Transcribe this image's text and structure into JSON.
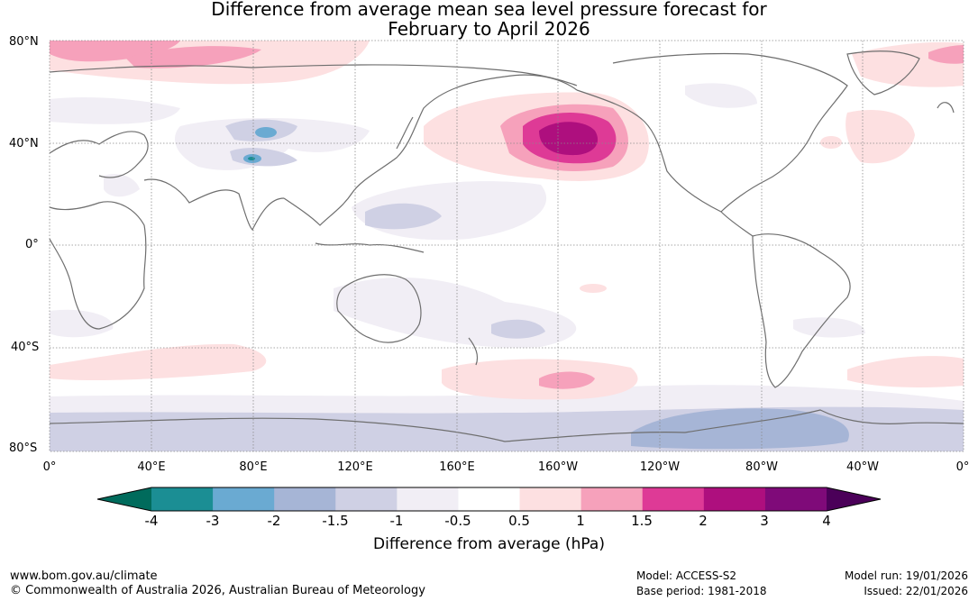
{
  "title": {
    "line1": "Difference from average mean sea level pressure forecast for",
    "line2": "February to April 2026"
  },
  "map": {
    "lat_labels": [
      "80°N",
      "40°N",
      "0°",
      "40°S",
      "80°S"
    ],
    "lon_labels": [
      "0°",
      "40°E",
      "80°E",
      "120°E",
      "160°E",
      "160°W",
      "120°W",
      "80°W",
      "40°W",
      "0°"
    ]
  },
  "colorbar": {
    "ticks": [
      "-4",
      "-3",
      "-2",
      "-1.5",
      "-1",
      "-0.5",
      "0.5",
      "1",
      "1.5",
      "2",
      "3",
      "4"
    ],
    "label": "Difference from average (hPa)",
    "colors": {
      "below_min": "#006b5c",
      "bins": [
        "#1b8e94",
        "#6aaad2",
        "#a6b5d6",
        "#cfd0e4",
        "#f1eef5",
        "#ffffff",
        "#fde0e1",
        "#f6a1bb",
        "#de3a96",
        "#ae0f7e",
        "#7f0a79"
      ],
      "above_max": "#4b0059"
    }
  },
  "footer": {
    "website": "www.bom.gov.au/climate",
    "copyright": "© Commonwealth of Australia 2026, Australian Bureau of Meteorology",
    "model": "Model: ACCESS-S2",
    "base_period": "Base period: 1981-2018",
    "model_run": "Model run: 19/01/2026",
    "issued": "Issued: 22/01/2026"
  }
}
